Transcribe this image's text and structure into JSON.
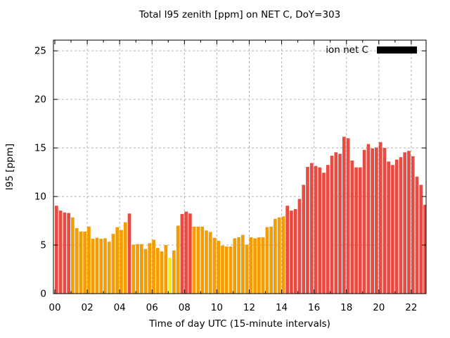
{
  "chart_data": {
    "type": "bar",
    "title": "Total I95 zenith [ppm] on NET C, DoY=303",
    "xlabel": "Time of day UTC (15-minute intervals)",
    "ylabel": "I95 [ppm]",
    "legend": {
      "label": "ion net C",
      "swatch_color": "#000000",
      "position": "top-right-inside"
    },
    "x_start": "00:00",
    "interval_minutes": 15,
    "x_tick_labels": [
      "00",
      "02",
      "04",
      "06",
      "08",
      "10",
      "12",
      "14",
      "16",
      "18",
      "20",
      "22"
    ],
    "y_tick_values": [
      0,
      5,
      10,
      15,
      20,
      25
    ],
    "ylim": [
      0,
      26.1
    ],
    "xlim_hours": [
      0,
      22.92
    ],
    "grid": true,
    "values": [
      9.05,
      8.55,
      8.35,
      8.3,
      7.85,
      6.75,
      6.4,
      6.4,
      6.9,
      5.65,
      5.75,
      5.65,
      5.7,
      5.35,
      6.15,
      6.85,
      6.55,
      7.35,
      8.25,
      5.05,
      5.1,
      5.1,
      4.6,
      5.2,
      5.55,
      4.7,
      4.35,
      5.0,
      3.7,
      4.45,
      7.0,
      8.2,
      8.45,
      8.25,
      6.9,
      6.9,
      6.9,
      6.5,
      6.35,
      5.75,
      5.45,
      4.95,
      4.85,
      4.85,
      5.7,
      5.8,
      6.05,
      5.05,
      5.8,
      5.7,
      5.8,
      5.8,
      6.85,
      6.9,
      7.7,
      7.85,
      7.95,
      9.05,
      8.55,
      8.7,
      9.75,
      11.2,
      13.05,
      13.45,
      13.15,
      13.0,
      12.45,
      13.25,
      14.2,
      14.55,
      14.4,
      16.15,
      16.0,
      13.7,
      13.0,
      13.0,
      14.8,
      15.4,
      14.95,
      15.05,
      15.6,
      15.0,
      13.6,
      13.25,
      13.8,
      14.05,
      14.55,
      14.7,
      14.15,
      12.05,
      11.2,
      9.15
    ],
    "bar_color_rule": {
      "yellow_below": 4.0,
      "red_at_or_above": 8.1,
      "otherwise": "orange"
    },
    "colors": {
      "red": "#e94b42",
      "orange": "#f59c00",
      "yellow": "#f4f000",
      "grid": "#b3b3b3",
      "axis": "#000000",
      "background": "#ffffff",
      "text": "#000000"
    }
  }
}
